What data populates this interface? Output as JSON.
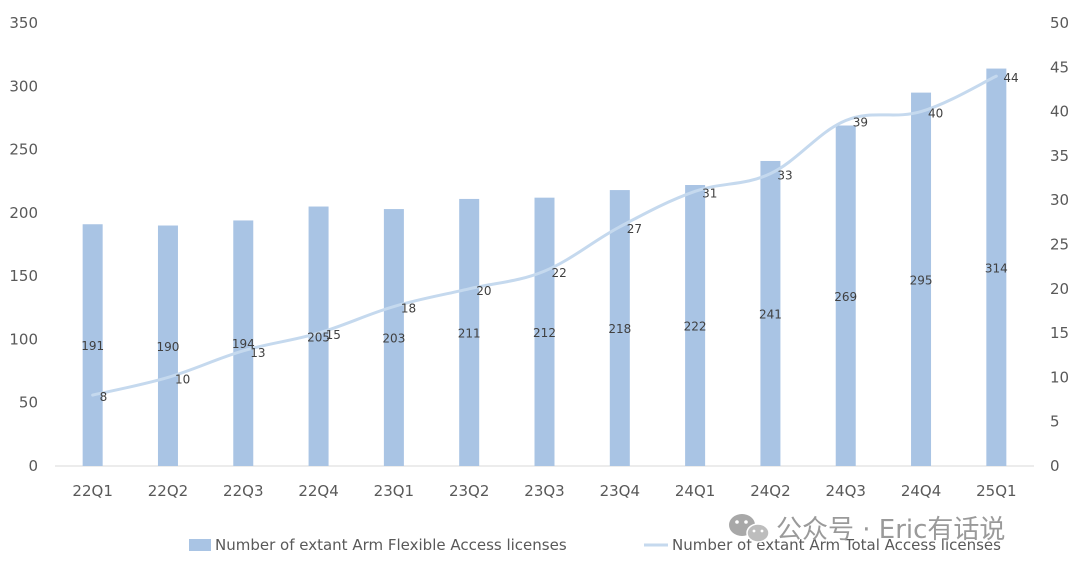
{
  "chart_data": {
    "type": "bar",
    "categories": [
      "22Q1",
      "22Q2",
      "22Q3",
      "22Q4",
      "23Q1",
      "23Q2",
      "23Q3",
      "23Q4",
      "24Q1",
      "24Q2",
      "24Q3",
      "24Q4",
      "25Q1"
    ],
    "series": [
      {
        "name": "Number of extant Arm Flexible Access licenses",
        "type": "bar",
        "axis": "left",
        "color": "#a9c4e4",
        "values": [
          191,
          190,
          194,
          205,
          203,
          211,
          212,
          218,
          222,
          241,
          269,
          295,
          314
        ]
      },
      {
        "name": "Number of extant Arm Total Access licenses",
        "type": "line",
        "axis": "right",
        "color": "#c5d9ee",
        "values": [
          8,
          10,
          13,
          15,
          18,
          20,
          22,
          27,
          31,
          33,
          39,
          40,
          44
        ]
      }
    ],
    "y_left": {
      "range": [
        0,
        350
      ],
      "ticks": [
        "0",
        "50",
        "100",
        "150",
        "200",
        "250",
        "300",
        "350"
      ]
    },
    "y_right": {
      "range": [
        0,
        50
      ],
      "ticks": [
        "0",
        "5",
        "10",
        "15",
        "20",
        "25",
        "30",
        "35",
        "40",
        "45",
        "50"
      ]
    },
    "grid": false,
    "legend_position": "bottom"
  },
  "watermark": {
    "icon": "wechat-icon",
    "text": "公众号 · Eric有话说"
  }
}
